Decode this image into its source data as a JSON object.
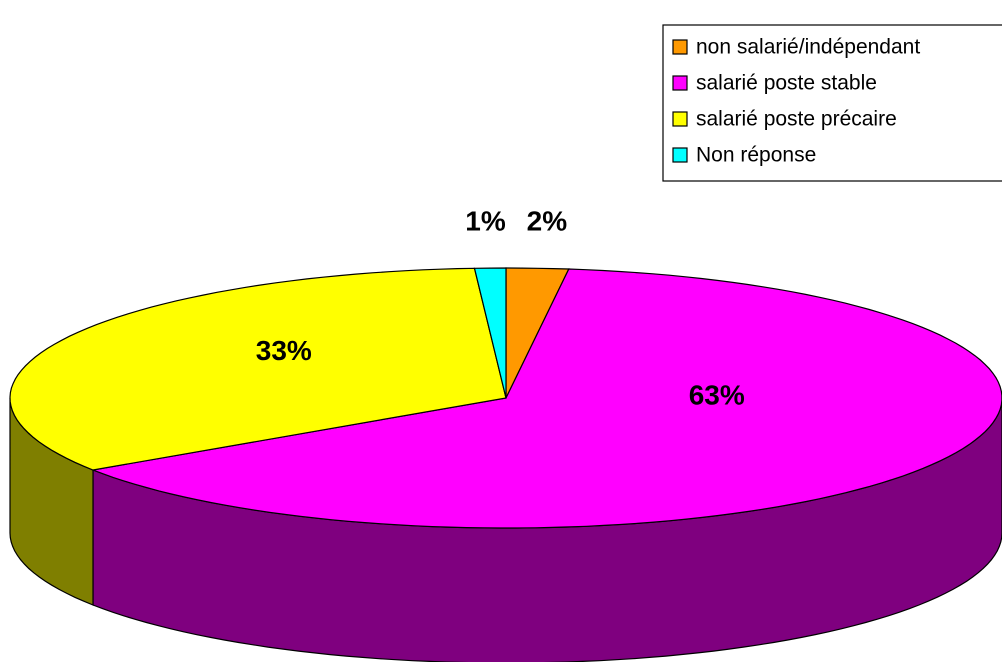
{
  "chart_data": {
    "type": "pie",
    "categories": [
      "non salarié/indépendant",
      "salarié poste stable",
      "salarié poste précaire",
      "Non réponse"
    ],
    "values": [
      2,
      63,
      33,
      1
    ],
    "value_labels": [
      "2%",
      "63%",
      "33%",
      "1%"
    ],
    "colors": [
      "#ff9900",
      "#ff00ff",
      "#ffff00",
      "#00ffff"
    ],
    "legend": "top-right"
  }
}
